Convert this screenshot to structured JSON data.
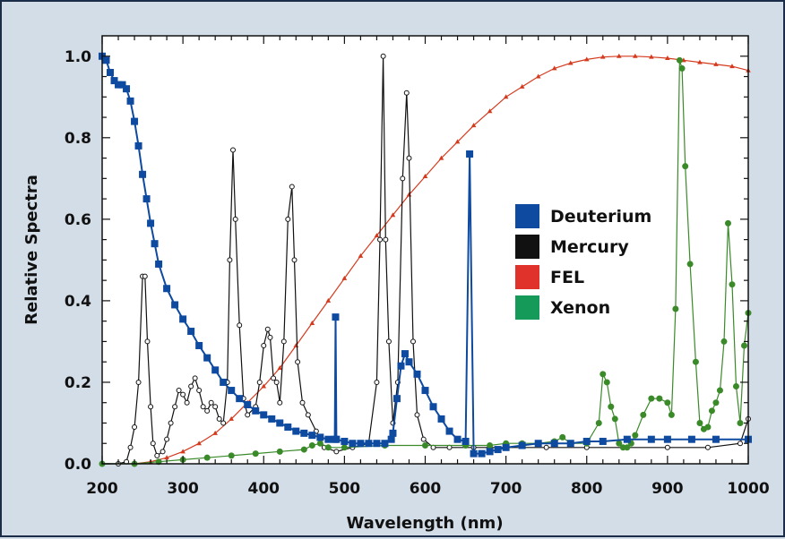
{
  "chart_data": {
    "type": "line",
    "title": "",
    "xlabel": "Wavelength (nm)",
    "ylabel": "Relative Spectra",
    "xlim": [
      200,
      1000
    ],
    "ylim": [
      0,
      1.05
    ],
    "x_ticks": [
      "200",
      "300",
      "400",
      "500",
      "600",
      "700",
      "800",
      "900",
      "1000"
    ],
    "y_ticks": [
      "0.0",
      "0.2",
      "0.4",
      "0.6",
      "0.8",
      "1.0"
    ],
    "legend_position": "center-right",
    "grid": false,
    "series": [
      {
        "name": "Deuterium",
        "color": "#0d4aa0",
        "marker": "square",
        "points": [
          [
            200,
            1.0
          ],
          [
            205,
            0.99
          ],
          [
            210,
            0.96
          ],
          [
            215,
            0.94
          ],
          [
            220,
            0.93
          ],
          [
            225,
            0.93
          ],
          [
            230,
            0.92
          ],
          [
            235,
            0.89
          ],
          [
            240,
            0.84
          ],
          [
            245,
            0.78
          ],
          [
            250,
            0.71
          ],
          [
            255,
            0.65
          ],
          [
            260,
            0.59
          ],
          [
            265,
            0.54
          ],
          [
            270,
            0.49
          ],
          [
            280,
            0.43
          ],
          [
            290,
            0.39
          ],
          [
            300,
            0.355
          ],
          [
            310,
            0.325
          ],
          [
            320,
            0.29
          ],
          [
            330,
            0.26
          ],
          [
            340,
            0.23
          ],
          [
            350,
            0.2
          ],
          [
            360,
            0.18
          ],
          [
            370,
            0.16
          ],
          [
            380,
            0.145
          ],
          [
            390,
            0.13
          ],
          [
            400,
            0.12
          ],
          [
            410,
            0.11
          ],
          [
            420,
            0.1
          ],
          [
            430,
            0.09
          ],
          [
            440,
            0.08
          ],
          [
            450,
            0.075
          ],
          [
            460,
            0.07
          ],
          [
            470,
            0.065
          ],
          [
            480,
            0.06
          ],
          [
            488,
            0.06
          ],
          [
            489,
            0.36
          ],
          [
            490,
            0.06
          ],
          [
            500,
            0.055
          ],
          [
            510,
            0.05
          ],
          [
            520,
            0.05
          ],
          [
            530,
            0.05
          ],
          [
            540,
            0.05
          ],
          [
            550,
            0.05
          ],
          [
            558,
            0.06
          ],
          [
            560,
            0.075
          ],
          [
            565,
            0.16
          ],
          [
            570,
            0.24
          ],
          [
            575,
            0.27
          ],
          [
            580,
            0.25
          ],
          [
            590,
            0.22
          ],
          [
            600,
            0.18
          ],
          [
            610,
            0.14
          ],
          [
            620,
            0.11
          ],
          [
            630,
            0.08
          ],
          [
            640,
            0.06
          ],
          [
            650,
            0.055
          ],
          [
            655,
            0.76
          ],
          [
            660,
            0.025
          ],
          [
            670,
            0.025
          ],
          [
            680,
            0.03
          ],
          [
            690,
            0.035
          ],
          [
            700,
            0.04
          ],
          [
            720,
            0.045
          ],
          [
            740,
            0.05
          ],
          [
            760,
            0.05
          ],
          [
            780,
            0.05
          ],
          [
            800,
            0.055
          ],
          [
            820,
            0.055
          ],
          [
            850,
            0.06
          ],
          [
            880,
            0.06
          ],
          [
            900,
            0.06
          ],
          [
            930,
            0.06
          ],
          [
            960,
            0.06
          ],
          [
            1000,
            0.06
          ]
        ]
      },
      {
        "name": "Mercury",
        "color": "#111111",
        "marker": "circle-open",
        "points": [
          [
            200,
            0.0
          ],
          [
            220,
            0.0
          ],
          [
            230,
            0.005
          ],
          [
            235,
            0.04
          ],
          [
            240,
            0.09
          ],
          [
            245,
            0.2
          ],
          [
            250,
            0.46
          ],
          [
            253,
            0.46
          ],
          [
            256,
            0.3
          ],
          [
            260,
            0.14
          ],
          [
            263,
            0.05
          ],
          [
            268,
            0.02
          ],
          [
            275,
            0.03
          ],
          [
            280,
            0.06
          ],
          [
            285,
            0.1
          ],
          [
            290,
            0.14
          ],
          [
            295,
            0.18
          ],
          [
            300,
            0.17
          ],
          [
            305,
            0.15
          ],
          [
            310,
            0.19
          ],
          [
            315,
            0.21
          ],
          [
            320,
            0.18
          ],
          [
            325,
            0.14
          ],
          [
            330,
            0.13
          ],
          [
            335,
            0.15
          ],
          [
            340,
            0.14
          ],
          [
            345,
            0.11
          ],
          [
            350,
            0.1
          ],
          [
            355,
            0.2
          ],
          [
            358,
            0.5
          ],
          [
            362,
            0.77
          ],
          [
            365,
            0.6
          ],
          [
            370,
            0.34
          ],
          [
            375,
            0.16
          ],
          [
            380,
            0.12
          ],
          [
            390,
            0.14
          ],
          [
            395,
            0.2
          ],
          [
            400,
            0.29
          ],
          [
            405,
            0.33
          ],
          [
            408,
            0.31
          ],
          [
            412,
            0.21
          ],
          [
            416,
            0.2
          ],
          [
            420,
            0.15
          ],
          [
            425,
            0.3
          ],
          [
            430,
            0.6
          ],
          [
            435,
            0.68
          ],
          [
            438,
            0.5
          ],
          [
            442,
            0.25
          ],
          [
            448,
            0.15
          ],
          [
            455,
            0.12
          ],
          [
            465,
            0.08
          ],
          [
            475,
            0.04
          ],
          [
            490,
            0.03
          ],
          [
            510,
            0.04
          ],
          [
            530,
            0.05
          ],
          [
            540,
            0.2
          ],
          [
            544,
            0.55
          ],
          [
            548,
            1.0
          ],
          [
            551,
            0.55
          ],
          [
            555,
            0.3
          ],
          [
            560,
            0.1
          ],
          [
            566,
            0.2
          ],
          [
            572,
            0.7
          ],
          [
            577,
            0.91
          ],
          [
            580,
            0.75
          ],
          [
            585,
            0.3
          ],
          [
            590,
            0.12
          ],
          [
            598,
            0.06
          ],
          [
            610,
            0.04
          ],
          [
            630,
            0.04
          ],
          [
            660,
            0.04
          ],
          [
            700,
            0.04
          ],
          [
            750,
            0.04
          ],
          [
            800,
            0.04
          ],
          [
            850,
            0.04
          ],
          [
            900,
            0.04
          ],
          [
            950,
            0.04
          ],
          [
            990,
            0.05
          ],
          [
            1000,
            0.11
          ]
        ]
      },
      {
        "name": "FEL",
        "color": "#d43a1e",
        "marker": "triangle",
        "points": [
          [
            240,
            0.0
          ],
          [
            260,
            0.005
          ],
          [
            280,
            0.015
          ],
          [
            300,
            0.03
          ],
          [
            320,
            0.05
          ],
          [
            340,
            0.075
          ],
          [
            360,
            0.11
          ],
          [
            380,
            0.15
          ],
          [
            400,
            0.19
          ],
          [
            420,
            0.235
          ],
          [
            440,
            0.29
          ],
          [
            460,
            0.345
          ],
          [
            480,
            0.4
          ],
          [
            500,
            0.455
          ],
          [
            520,
            0.51
          ],
          [
            540,
            0.56
          ],
          [
            560,
            0.61
          ],
          [
            580,
            0.66
          ],
          [
            600,
            0.705
          ],
          [
            620,
            0.75
          ],
          [
            640,
            0.79
          ],
          [
            660,
            0.83
          ],
          [
            680,
            0.865
          ],
          [
            700,
            0.9
          ],
          [
            720,
            0.925
          ],
          [
            740,
            0.95
          ],
          [
            760,
            0.97
          ],
          [
            780,
            0.983
          ],
          [
            800,
            0.992
          ],
          [
            820,
            0.998
          ],
          [
            840,
            1.0
          ],
          [
            860,
            1.0
          ],
          [
            880,
            0.998
          ],
          [
            900,
            0.995
          ],
          [
            920,
            0.99
          ],
          [
            940,
            0.985
          ],
          [
            960,
            0.98
          ],
          [
            980,
            0.975
          ],
          [
            1000,
            0.965
          ]
        ]
      },
      {
        "name": "Xenon",
        "color": "#3a8a2a",
        "marker": "circle",
        "points": [
          [
            200,
            0.0
          ],
          [
            240,
            0.0
          ],
          [
            270,
            0.005
          ],
          [
            300,
            0.01
          ],
          [
            330,
            0.015
          ],
          [
            360,
            0.02
          ],
          [
            390,
            0.025
          ],
          [
            420,
            0.03
          ],
          [
            450,
            0.035
          ],
          [
            460,
            0.045
          ],
          [
            470,
            0.05
          ],
          [
            480,
            0.04
          ],
          [
            500,
            0.04
          ],
          [
            550,
            0.045
          ],
          [
            600,
            0.045
          ],
          [
            650,
            0.045
          ],
          [
            680,
            0.045
          ],
          [
            700,
            0.05
          ],
          [
            720,
            0.05
          ],
          [
            740,
            0.05
          ],
          [
            760,
            0.055
          ],
          [
            770,
            0.065
          ],
          [
            780,
            0.05
          ],
          [
            800,
            0.05
          ],
          [
            815,
            0.1
          ],
          [
            820,
            0.22
          ],
          [
            825,
            0.2
          ],
          [
            830,
            0.14
          ],
          [
            835,
            0.11
          ],
          [
            840,
            0.05
          ],
          [
            845,
            0.04
          ],
          [
            850,
            0.04
          ],
          [
            855,
            0.05
          ],
          [
            860,
            0.07
          ],
          [
            870,
            0.12
          ],
          [
            880,
            0.16
          ],
          [
            890,
            0.16
          ],
          [
            900,
            0.15
          ],
          [
            905,
            0.12
          ],
          [
            910,
            0.38
          ],
          [
            915,
            0.99
          ],
          [
            918,
            0.97
          ],
          [
            922,
            0.73
          ],
          [
            928,
            0.49
          ],
          [
            935,
            0.25
          ],
          [
            940,
            0.1
          ],
          [
            945,
            0.085
          ],
          [
            950,
            0.09
          ],
          [
            955,
            0.13
          ],
          [
            960,
            0.15
          ],
          [
            965,
            0.18
          ],
          [
            970,
            0.3
          ],
          [
            975,
            0.59
          ],
          [
            980,
            0.44
          ],
          [
            985,
            0.19
          ],
          [
            990,
            0.1
          ],
          [
            995,
            0.29
          ],
          [
            1000,
            0.37
          ]
        ]
      }
    ]
  }
}
